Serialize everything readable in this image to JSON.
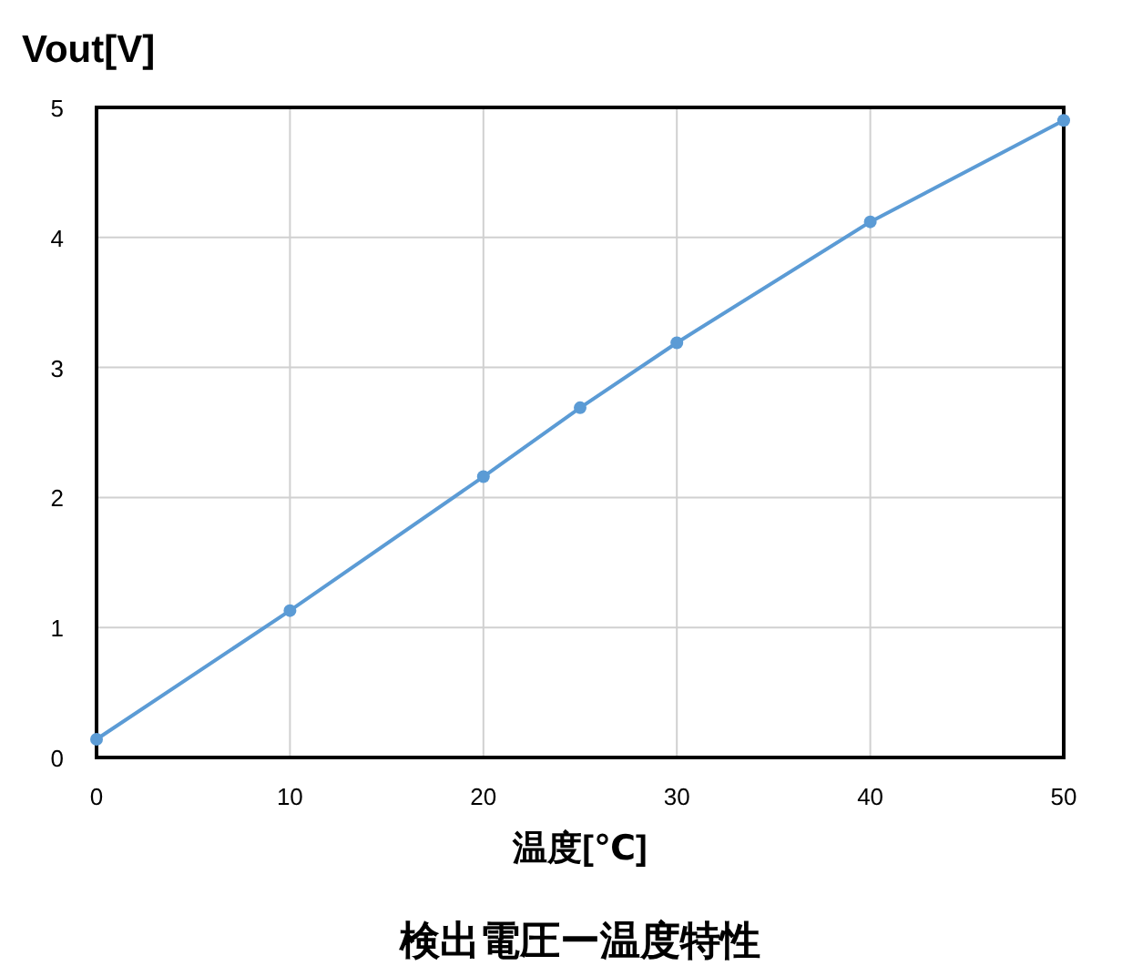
{
  "chart_data": {
    "type": "line",
    "title": "検出電圧ー温度特性",
    "xlabel": "温度[℃]",
    "ylabel": "Vout[V]",
    "x": [
      0,
      10,
      20,
      25,
      30,
      40,
      50
    ],
    "series": [
      {
        "color": "#5b9bd5",
        "values": [
          0.14,
          1.13,
          2.16,
          2.69,
          3.19,
          4.12,
          4.9
        ]
      }
    ],
    "xlim": [
      0,
      50
    ],
    "xticks": [
      0,
      10,
      20,
      30,
      40,
      50
    ],
    "ylim": [
      0,
      5
    ],
    "yticks": [
      0,
      1,
      2,
      3,
      4,
      5
    ],
    "grid": true,
    "marker": "circle",
    "line_style": "solid"
  }
}
